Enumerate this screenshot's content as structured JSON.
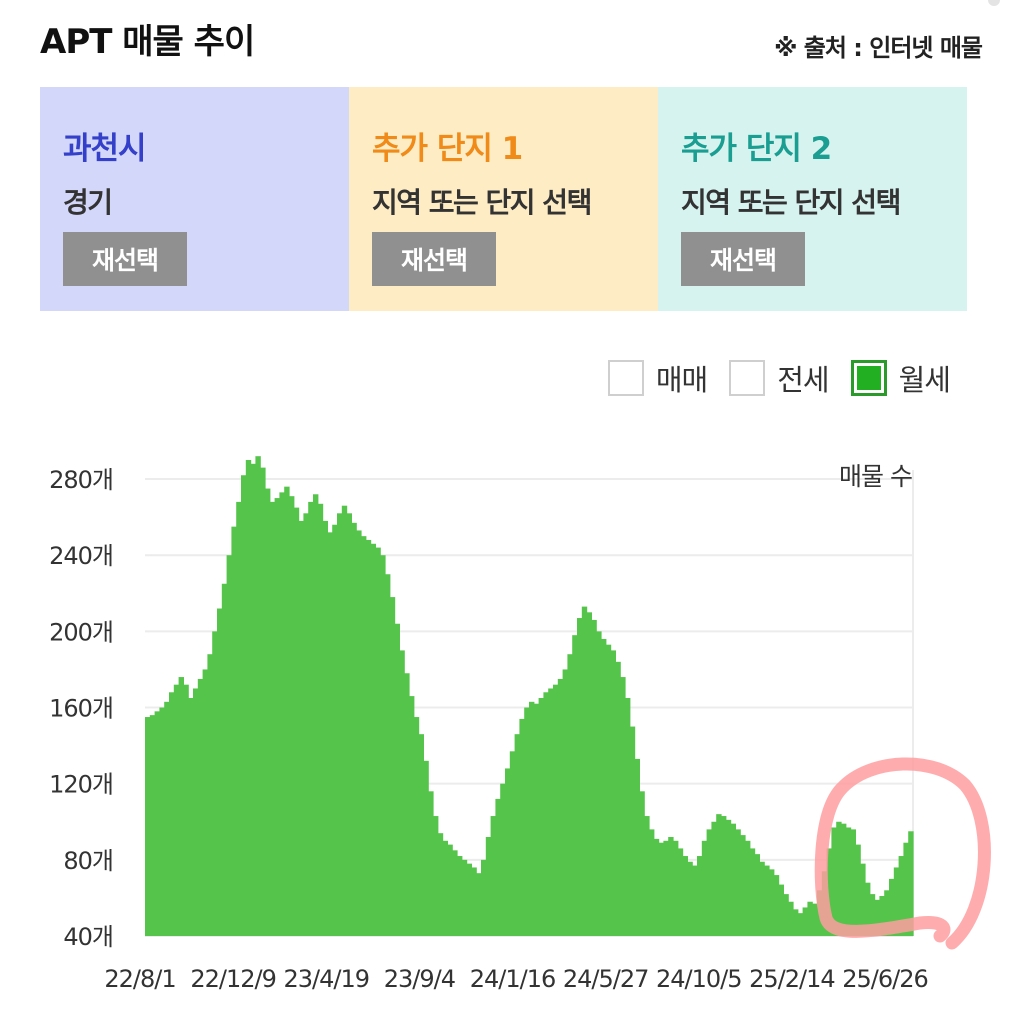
{
  "header": {
    "title": "APT 매물 추이",
    "source": "※ 출처 : 인터넷 매물"
  },
  "panels": [
    {
      "title": "과천시",
      "subtitle": "경기",
      "button": "재선택",
      "bg": "#d3d8fb",
      "title_color": "#3440c9"
    },
    {
      "title": "추가 단지 1",
      "subtitle": "지역 또는 단지 선택",
      "button": "재선택",
      "bg": "#fdecc4",
      "title_color": "#f08a18"
    },
    {
      "title": "추가 단지 2",
      "subtitle": "지역 또는 단지 선택",
      "button": "재선택",
      "bg": "#d7f3ef",
      "title_color": "#1a9e92"
    }
  ],
  "legend": {
    "items": [
      {
        "label": "매매",
        "checked": false
      },
      {
        "label": "전세",
        "checked": false
      },
      {
        "label": "월세",
        "checked": true
      }
    ]
  },
  "chart_data": {
    "type": "area",
    "ylabel": "매물 수",
    "ylim": [
      40,
      290
    ],
    "yticks": [
      40,
      80,
      120,
      160,
      200,
      240,
      280
    ],
    "ytick_labels": [
      "40개",
      "80개",
      "120개",
      "160개",
      "200개",
      "240개",
      "280개"
    ],
    "xtick_labels": [
      "22/8/1",
      "22/12/9",
      "23/4/19",
      "23/9/4",
      "24/1/16",
      "24/5/27",
      "24/10/5",
      "25/2/14",
      "25/6/26"
    ],
    "grid": true,
    "series": [
      {
        "color": "#55c44a",
        "values": [
          155,
          156,
          158,
          160,
          163,
          168,
          172,
          176,
          172,
          165,
          170,
          175,
          180,
          188,
          200,
          212,
          225,
          240,
          255,
          268,
          282,
          290,
          288,
          292,
          286,
          275,
          268,
          270,
          273,
          276,
          271,
          265,
          258,
          262,
          268,
          272,
          267,
          258,
          252,
          256,
          262,
          266,
          262,
          257,
          253,
          250,
          248,
          246,
          244,
          240,
          230,
          218,
          204,
          190,
          178,
          166,
          155,
          146,
          132,
          116,
          103,
          94,
          90,
          88,
          85,
          82,
          80,
          78,
          76,
          73,
          80,
          92,
          103,
          112,
          120,
          128,
          137,
          146,
          154,
          160,
          163,
          162,
          165,
          168,
          170,
          172,
          175,
          180,
          188,
          198,
          207,
          213,
          210,
          206,
          200,
          196,
          193,
          190,
          184,
          176,
          165,
          150,
          133,
          116,
          103,
          96,
          91,
          89,
          90,
          92,
          90,
          86,
          82,
          79,
          77,
          82,
          90,
          96,
          100,
          104,
          103,
          101,
          99,
          96,
          93,
          90,
          86,
          83,
          79,
          77,
          75,
          72,
          67,
          62,
          58,
          54,
          52,
          55,
          58,
          57,
          64,
          74,
          86,
          97,
          100,
          99,
          97,
          96,
          88,
          78,
          68,
          62,
          59,
          61,
          64,
          70,
          76,
          82,
          89,
          95
        ]
      }
    ]
  }
}
